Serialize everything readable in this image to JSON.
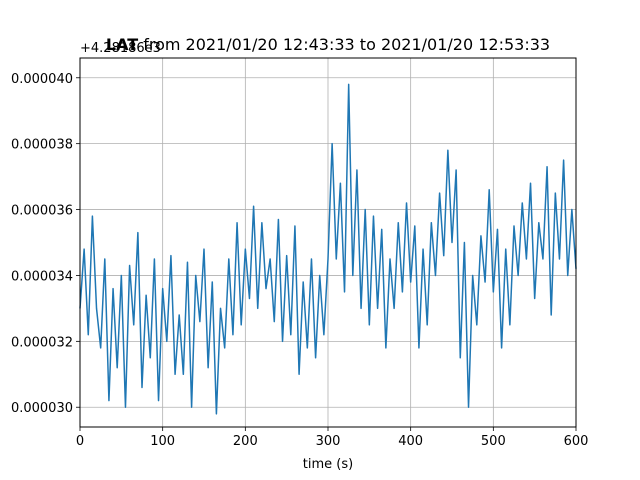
{
  "chart_data": {
    "type": "line",
    "title_bold": "LAT",
    "title_rest": " from 2021/01/20 12:43:33 to 2021/01/20 12:53:33",
    "offset_text": "+4.28186e3",
    "xlabel": "time (s)",
    "ylabel": "",
    "xlim": [
      0,
      600
    ],
    "ylim": [
      2.94e-05,
      4.06e-05
    ],
    "x_ticks": [
      0,
      100,
      200,
      300,
      400,
      500,
      600
    ],
    "x_tick_labels": [
      "0",
      "100",
      "200",
      "300",
      "400",
      "500",
      "600"
    ],
    "y_ticks": [
      3e-05,
      3.2e-05,
      3.4e-05,
      3.6e-05,
      3.8e-05,
      4e-05
    ],
    "y_tick_labels": [
      "0.000030",
      "0.000032",
      "0.000034",
      "0.000036",
      "0.000038",
      "0.000040"
    ],
    "grid": true,
    "series_color": "#1f77b4",
    "series": [
      {
        "x": [
          0,
          5,
          10,
          15,
          20,
          25,
          30,
          35,
          40,
          45,
          50,
          55,
          60,
          65,
          70,
          75,
          80,
          85,
          90,
          95,
          100,
          105,
          110,
          115,
          120,
          125,
          130,
          135,
          140,
          145,
          150,
          155,
          160,
          165,
          170,
          175,
          180,
          185,
          190,
          195,
          200,
          205,
          210,
          215,
          220,
          225,
          230,
          235,
          240,
          245,
          250,
          255,
          260,
          265,
          270,
          275,
          280,
          285,
          290,
          295,
          300,
          305,
          310,
          315,
          320,
          325,
          330,
          335,
          340,
          345,
          350,
          355,
          360,
          365,
          370,
          375,
          380,
          385,
          390,
          395,
          400,
          405,
          410,
          415,
          420,
          425,
          430,
          435,
          440,
          445,
          450,
          455,
          460,
          465,
          470,
          475,
          480,
          485,
          490,
          495,
          500,
          505,
          510,
          515,
          520,
          525,
          530,
          535,
          540,
          545,
          550,
          555,
          560,
          565,
          570,
          575,
          580,
          585,
          590,
          595,
          600
        ],
        "y": [
          3.3e-05,
          3.48e-05,
          3.22e-05,
          3.58e-05,
          3.3e-05,
          3.18e-05,
          3.45e-05,
          3.02e-05,
          3.36e-05,
          3.12e-05,
          3.4e-05,
          3e-05,
          3.43e-05,
          3.25e-05,
          3.53e-05,
          3.06e-05,
          3.34e-05,
          3.15e-05,
          3.45e-05,
          3.02e-05,
          3.36e-05,
          3.2e-05,
          3.46e-05,
          3.1e-05,
          3.28e-05,
          3.1e-05,
          3.44e-05,
          3e-05,
          3.4e-05,
          3.26e-05,
          3.48e-05,
          3.12e-05,
          3.38e-05,
          2.98e-05,
          3.3e-05,
          3.18e-05,
          3.45e-05,
          3.22e-05,
          3.56e-05,
          3.25e-05,
          3.48e-05,
          3.33e-05,
          3.61e-05,
          3.3e-05,
          3.56e-05,
          3.36e-05,
          3.45e-05,
          3.26e-05,
          3.57e-05,
          3.2e-05,
          3.46e-05,
          3.22e-05,
          3.55e-05,
          3.1e-05,
          3.38e-05,
          3.18e-05,
          3.45e-05,
          3.15e-05,
          3.4e-05,
          3.22e-05,
          3.45e-05,
          3.8e-05,
          3.45e-05,
          3.68e-05,
          3.35e-05,
          3.98e-05,
          3.4e-05,
          3.72e-05,
          3.3e-05,
          3.6e-05,
          3.25e-05,
          3.58e-05,
          3.3e-05,
          3.54e-05,
          3.18e-05,
          3.45e-05,
          3.3e-05,
          3.56e-05,
          3.35e-05,
          3.62e-05,
          3.38e-05,
          3.55e-05,
          3.18e-05,
          3.48e-05,
          3.25e-05,
          3.56e-05,
          3.4e-05,
          3.65e-05,
          3.46e-05,
          3.78e-05,
          3.5e-05,
          3.72e-05,
          3.15e-05,
          3.5e-05,
          3e-05,
          3.4e-05,
          3.25e-05,
          3.52e-05,
          3.38e-05,
          3.66e-05,
          3.35e-05,
          3.54e-05,
          3.18e-05,
          3.48e-05,
          3.25e-05,
          3.55e-05,
          3.4e-05,
          3.62e-05,
          3.45e-05,
          3.68e-05,
          3.33e-05,
          3.56e-05,
          3.45e-05,
          3.73e-05,
          3.28e-05,
          3.65e-05,
          3.45e-05,
          3.75e-05,
          3.4e-05,
          3.6e-05,
          3.42e-05
        ]
      }
    ]
  }
}
